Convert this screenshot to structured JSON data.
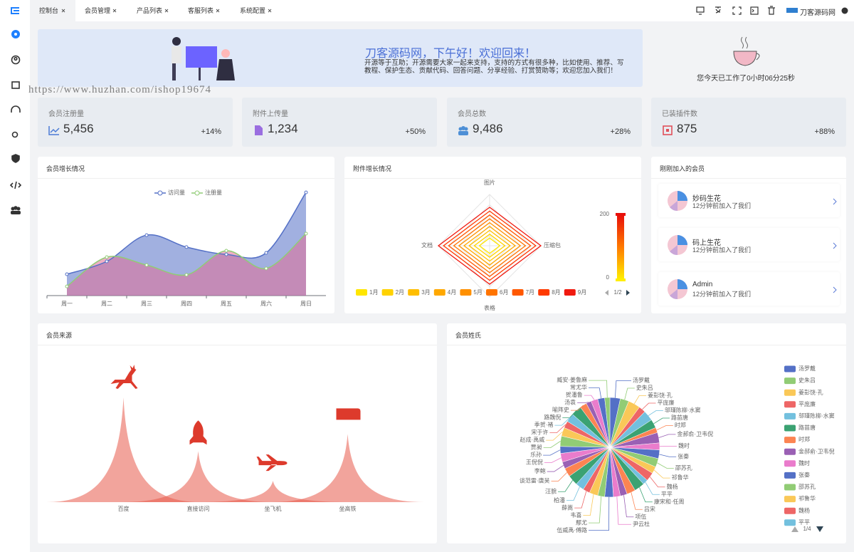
{
  "tabs": [
    "控制台",
    "会员管理",
    "产品列表",
    "客服列表",
    "系统配置"
  ],
  "site_name": "刀客源码网",
  "watermark": "https://www.huzhan.com/ishop19674",
  "welcome": {
    "title": "刀客源码网，下午好！欢迎回来！",
    "text": "开源等于互助；开源需要大家一起来支持，支持的方式有很多种，比如使用、推荐、写教程、保护生态、贡献代码、回答问题、分享经验、打赏赞助等；欢迎您加入我们！"
  },
  "work_time": "您今天已工作了0小时06分25秒",
  "stats": [
    {
      "label": "会员注册量",
      "value": "5,456",
      "change": "+14%"
    },
    {
      "label": "附件上传量",
      "value": "1,234",
      "change": "+50%"
    },
    {
      "label": "会员总数",
      "value": "9,486",
      "change": "+28%"
    },
    {
      "label": "已装插件数",
      "value": "875",
      "change": "+88%"
    }
  ],
  "new_members": {
    "title": "刚刚加入的会员",
    "items": [
      {
        "name": "妙码生花",
        "note": "12分钟前加入了我们"
      },
      {
        "name": "码上生花",
        "note": "12分钟前加入了我们"
      },
      {
        "name": "Admin",
        "note": "12分钟前加入了我们"
      }
    ]
  },
  "chart_data": [
    {
      "type": "line",
      "title": "会员增长情况",
      "categories": [
        "周一",
        "周二",
        "周三",
        "周四",
        "周五",
        "周六",
        "周日"
      ],
      "ylim": [
        0,
        500
      ],
      "series": [
        {
          "name": "访问量",
          "color": "#5470c6",
          "area_color": "rgba(84,112,198,0.55)",
          "values": [
            100,
            160,
            283,
            227,
            193,
            200,
            483
          ]
        },
        {
          "name": "注册量",
          "color": "#91cc75",
          "area_color": "rgba(226,110,150,0.55)",
          "values": [
            43,
            180,
            143,
            97,
            210,
            127,
            290
          ]
        }
      ]
    },
    {
      "type": "radar",
      "title": "附件增长情况",
      "indicators": [
        "图片",
        "压缩包",
        "表格",
        "文档"
      ],
      "visual_range": [
        0,
        200
      ],
      "legend_page": "1/2",
      "series": [
        {
          "name": "1月",
          "color": "#ffe600",
          "values": [
            30,
            40,
            30,
            40
          ]
        },
        {
          "name": "2月",
          "color": "#ffd200",
          "values": [
            45,
            60,
            45,
            60
          ]
        },
        {
          "name": "3月",
          "color": "#ffbe00",
          "values": [
            60,
            80,
            60,
            80
          ]
        },
        {
          "name": "4月",
          "color": "#ffa800",
          "values": [
            75,
            100,
            75,
            100
          ]
        },
        {
          "name": "5月",
          "color": "#ff9000",
          "values": [
            90,
            120,
            90,
            120
          ]
        },
        {
          "name": "6月",
          "color": "#ff7400",
          "values": [
            105,
            140,
            105,
            140
          ]
        },
        {
          "name": "7月",
          "color": "#ff5800",
          "values": [
            120,
            160,
            120,
            160
          ]
        },
        {
          "name": "8月",
          "color": "#ff3a00",
          "values": [
            135,
            180,
            135,
            180
          ]
        },
        {
          "name": "9月",
          "color": "#f01a10",
          "values": [
            150,
            200,
            150,
            200
          ]
        }
      ]
    },
    {
      "type": "pictorial",
      "title": "会员来源",
      "categories": [
        "百度",
        "直接访问",
        "坐飞机",
        "坐高铁"
      ],
      "values": [
        123,
        60,
        25,
        80
      ],
      "color": "rgba(231,90,75,0.55)",
      "label_color": "#e5533d"
    },
    {
      "type": "pie",
      "title": "会员姓氏",
      "legend_page": "1/4",
      "colors": [
        "#5470c6",
        "#91cc75",
        "#fac858",
        "#ee6666",
        "#73c0de",
        "#3ba272",
        "#fc8452",
        "#9a60b4",
        "#ea7ccc"
      ],
      "categories": [
        "汤罗戴",
        "史朱吕",
        "姜彭饶·孔",
        "平庞廉",
        "邬瑾陈柳·水窦",
        "路苗唐",
        "时郑",
        "金郝俞·卫韦倪",
        "魏时",
        "张秦",
        "邵苏孔",
        "祁鲁华",
        "魏杨",
        "平平",
        "康宋和·任周",
        "吕宋",
        "项伍",
        "尹云杜",
        "伍威禹·傅路",
        "鄢尤",
        "韦喜",
        "薛嵩",
        "柏潘",
        "汪貌",
        "谈范雷·唐吴",
        "李鲍",
        "王倪倪",
        "乐孙",
        "贾昶",
        "赵成·禹威",
        "宋于许",
        "季贺·褚",
        "路魏倪",
        "喻阵史",
        "汤袁",
        "贺潘鲁",
        "常尤华",
        "臧安·姜鲁麻"
      ],
      "values": [
        6,
        5,
        7,
        4,
        6,
        5,
        3,
        6,
        4,
        5,
        5,
        4,
        5,
        3,
        6,
        5,
        4,
        4,
        5,
        4,
        5,
        4,
        5,
        6,
        5,
        4,
        5,
        4,
        6,
        5,
        4,
        5,
        6,
        4,
        3,
        4,
        4,
        3
      ]
    }
  ]
}
